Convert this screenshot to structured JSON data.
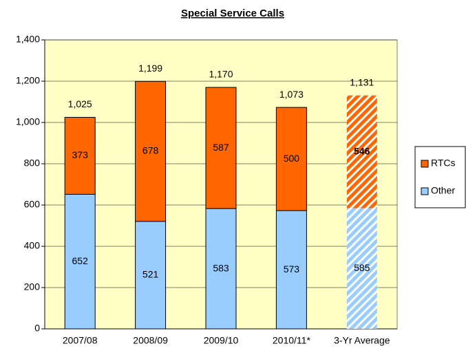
{
  "chart_data": {
    "type": "stacked_bar",
    "title": "Special Service Calls",
    "categories": [
      "2007/08",
      "2008/09",
      "2009/10",
      "2010/11*",
      "3-Yr Average"
    ],
    "series": [
      {
        "name": "Other",
        "color": "#99ccff",
        "values": [
          652,
          521,
          583,
          573,
          585
        ]
      },
      {
        "name": "RTCs",
        "color": "#ff6600",
        "values": [
          373,
          678,
          587,
          500,
          546
        ]
      }
    ],
    "totals": [
      1025,
      1199,
      1170,
      1073,
      1131
    ],
    "total_labels": [
      "1,025",
      "1,199",
      "1,170",
      "1,073",
      "1,131"
    ],
    "hatched": [
      false,
      false,
      false,
      false,
      true
    ],
    "ylim": [
      0,
      1400
    ],
    "yticks": [
      0,
      200,
      400,
      600,
      800,
      {
        "value": 1000,
        "label": "1,000"
      },
      {
        "value": 1200,
        "label": "1,200"
      },
      {
        "value": 1400,
        "label": "1,400"
      }
    ],
    "grid": true,
    "legend": "right"
  }
}
